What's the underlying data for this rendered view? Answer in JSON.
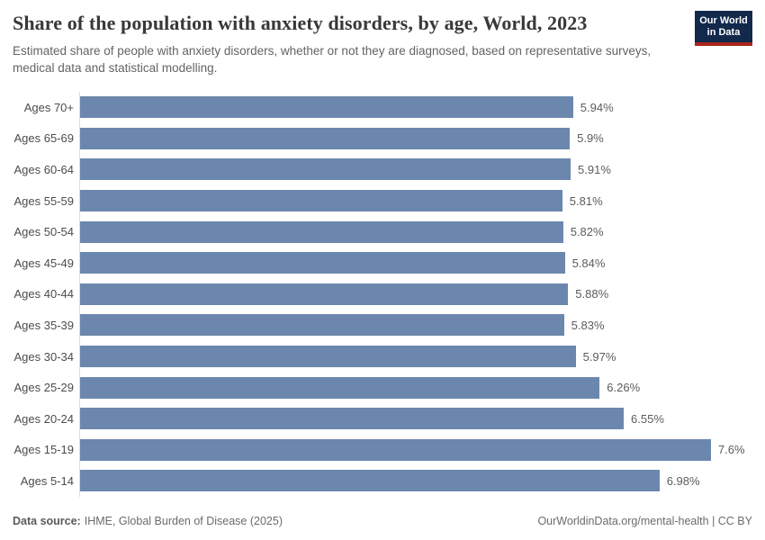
{
  "header": {
    "title": "Share of the population with anxiety disorders, by age, World, 2023",
    "subtitle": "Estimated share of people with anxiety disorders, whether or not they are diagnosed, based on representative surveys, medical data and statistical modelling.",
    "logo": {
      "line1": "Our World",
      "line2": "in Data"
    }
  },
  "chart_data": {
    "type": "bar",
    "orientation": "horizontal",
    "title": "Share of the population with anxiety disorders, by age, World, 2023",
    "xlabel": "",
    "ylabel": "",
    "categories": [
      "Ages 70+",
      "Ages 65-69",
      "Ages 60-64",
      "Ages 55-59",
      "Ages 50-54",
      "Ages 45-49",
      "Ages 40-44",
      "Ages 35-39",
      "Ages 30-34",
      "Ages 25-29",
      "Ages 20-24",
      "Ages 15-19",
      "Ages 5-14"
    ],
    "values": [
      5.94,
      5.9,
      5.91,
      5.81,
      5.82,
      5.84,
      5.88,
      5.83,
      5.97,
      6.26,
      6.55,
      7.6,
      6.98
    ],
    "value_labels": [
      "5.94%",
      "5.9%",
      "5.91%",
      "5.81%",
      "5.82%",
      "5.84%",
      "5.88%",
      "5.83%",
      "5.97%",
      "6.26%",
      "6.55%",
      "7.6%",
      "6.98%"
    ],
    "xlim": [
      0,
      8.1
    ],
    "grid": false,
    "legend": "none",
    "bar_color": "#6c87ad"
  },
  "footer": {
    "source_label": "Data source:",
    "source_value": "IHME, Global Burden of Disease (2025)",
    "credit": "OurWorldinData.org/mental-health | CC BY"
  },
  "colors": {
    "bar": "#6c87ad",
    "axis_line": "#dcdcdc",
    "logo_background": "#12294b",
    "logo_underline": "#a8241c",
    "title_text": "#383838",
    "subtitle_text": "#636363"
  }
}
